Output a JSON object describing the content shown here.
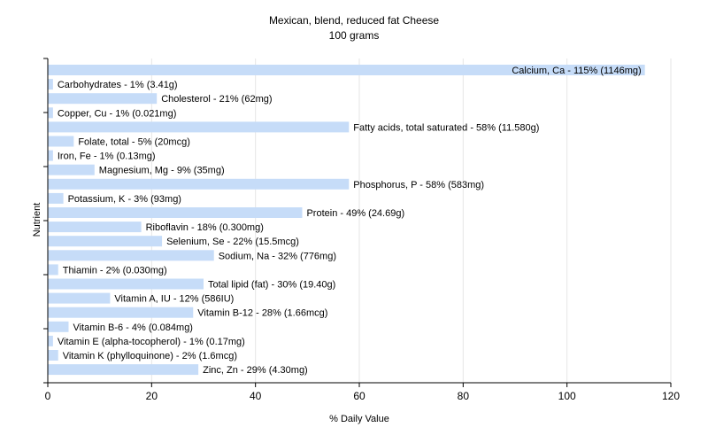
{
  "chart_data": {
    "type": "bar",
    "orientation": "horizontal",
    "title": "Mexican, blend, reduced fat Cheese",
    "subtitle": "100 grams",
    "xlabel": "% Daily Value",
    "ylabel": "Nutrient",
    "xlim": [
      0,
      120
    ],
    "xticks": [
      0,
      20,
      40,
      60,
      80,
      100,
      120
    ],
    "grid": true,
    "bar_color": "#c6dcf8",
    "categories": [
      "Calcium, Ca",
      "Carbohydrates",
      "Cholesterol",
      "Copper, Cu",
      "Fatty acids, total saturated",
      "Folate, total",
      "Iron, Fe",
      "Magnesium, Mg",
      "Phosphorus, P",
      "Potassium, K",
      "Protein",
      "Riboflavin",
      "Selenium, Se",
      "Sodium, Na",
      "Thiamin",
      "Total lipid (fat)",
      "Vitamin A, IU",
      "Vitamin B-12",
      "Vitamin B-6",
      "Vitamin E (alpha-tocopherol)",
      "Vitamin K (phylloquinone)",
      "Zinc, Zn"
    ],
    "values": [
      115,
      1,
      21,
      1,
      58,
      5,
      1,
      9,
      58,
      3,
      49,
      18,
      22,
      32,
      2,
      30,
      12,
      28,
      4,
      1,
      2,
      29
    ],
    "labels": [
      "Calcium, Ca - 115% (1146mg)",
      "Carbohydrates - 1% (3.41g)",
      "Cholesterol - 21% (62mg)",
      "Copper, Cu - 1% (0.021mg)",
      "Fatty acids, total saturated - 58% (11.580g)",
      "Folate, total - 5% (20mcg)",
      "Iron, Fe - 1% (0.13mg)",
      "Magnesium, Mg - 9% (35mg)",
      "Phosphorus, P - 58% (583mg)",
      "Potassium, K - 3% (93mg)",
      "Protein - 49% (24.69g)",
      "Riboflavin - 18% (0.300mg)",
      "Selenium, Se - 22% (15.5mcg)",
      "Sodium, Na - 32% (776mg)",
      "Thiamin - 2% (0.030mg)",
      "Total lipid (fat) - 30% (19.40g)",
      "Vitamin A, IU - 12% (586IU)",
      "Vitamin B-12 - 28% (1.66mcg)",
      "Vitamin B-6 - 4% (0.084mg)",
      "Vitamin E (alpha-tocopherol) - 1% (0.17mg)",
      "Vitamin K (phylloquinone) - 2% (1.6mcg)",
      "Zinc, Zn - 29% (4.30mg)"
    ]
  }
}
